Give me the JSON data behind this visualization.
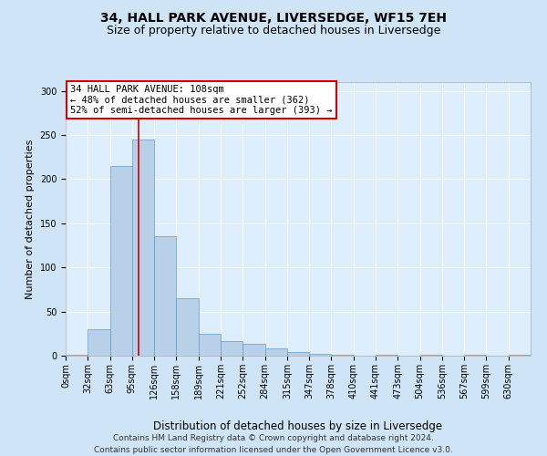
{
  "title": "34, HALL PARK AVENUE, LIVERSEDGE, WF15 7EH",
  "subtitle": "Size of property relative to detached houses in Liversedge",
  "xlabel": "Distribution of detached houses by size in Liversedge",
  "ylabel": "Number of detached properties",
  "bar_color": "#b8d0e8",
  "bar_edge_color": "#6699cc",
  "background_color": "#d0e4f7",
  "plot_bg_color": "#ddeeff",
  "grid_color": "#ffffff",
  "marker_line_color": "#cc0000",
  "annotation_box_color": "#ffffff",
  "annotation_border_color": "#cc0000",
  "annotation_text": "34 HALL PARK AVENUE: 108sqm\n← 48% of detached houses are smaller (362)\n52% of semi-detached houses are larger (393) →",
  "marker_bin": 3.3,
  "categories": [
    "0sqm",
    "32sqm",
    "63sqm",
    "95sqm",
    "126sqm",
    "158sqm",
    "189sqm",
    "221sqm",
    "252sqm",
    "284sqm",
    "315sqm",
    "347sqm",
    "378sqm",
    "410sqm",
    "441sqm",
    "473sqm",
    "504sqm",
    "536sqm",
    "567sqm",
    "599sqm",
    "630sqm"
  ],
  "values": [
    1,
    30,
    215,
    245,
    135,
    65,
    25,
    17,
    13,
    8,
    4,
    2,
    1,
    0,
    1,
    0,
    1,
    0,
    1,
    0,
    1
  ],
  "ylim": [
    0,
    310
  ],
  "yticks": [
    0,
    50,
    100,
    150,
    200,
    250,
    300
  ],
  "footer": "Contains HM Land Registry data © Crown copyright and database right 2024.\nContains public sector information licensed under the Open Government Licence v3.0.",
  "title_fontsize": 10,
  "subtitle_fontsize": 9,
  "xlabel_fontsize": 8.5,
  "ylabel_fontsize": 8,
  "tick_fontsize": 7,
  "footer_fontsize": 6.5,
  "annotation_fontsize": 7.5
}
